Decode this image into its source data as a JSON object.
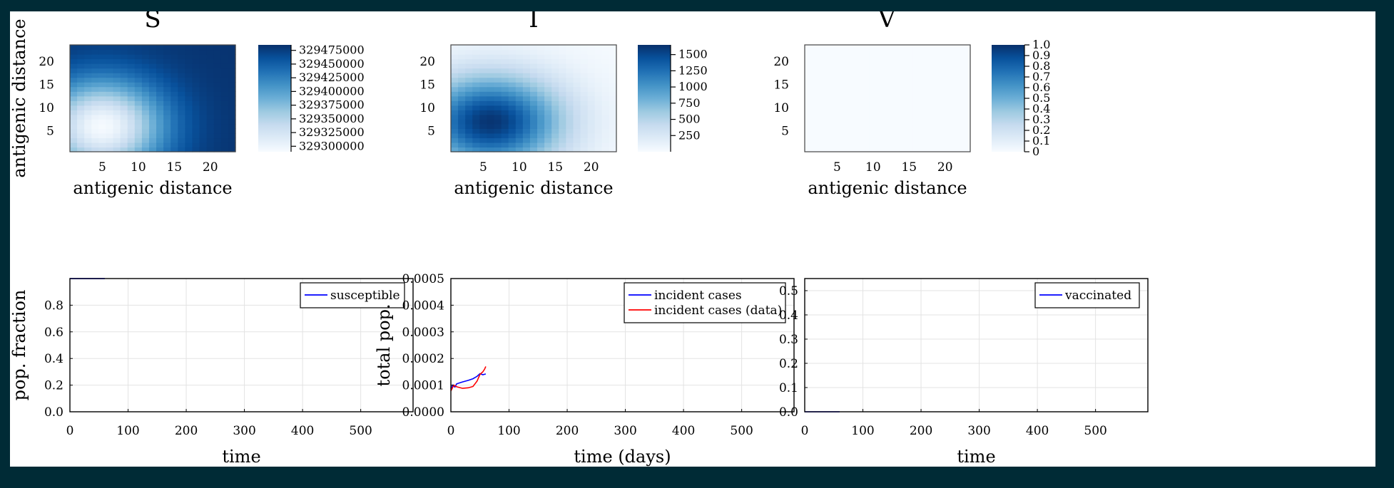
{
  "chart_data": [
    {
      "type": "heatmap",
      "title": "S",
      "xlabel": "antigenic distance",
      "ylabel": "antigenic distance",
      "xticks": [
        5,
        10,
        15,
        20
      ],
      "yticks": [
        5,
        10,
        15,
        20
      ],
      "grid_size": [
        23,
        23
      ],
      "colorbar_range": [
        329290000,
        329485000
      ],
      "colorbar_ticks": [
        "329475000",
        "329450000",
        "329425000",
        "329400000",
        "329375000",
        "329350000",
        "329325000",
        "329300000"
      ],
      "colorbar_tick_values": [
        329475000,
        329450000,
        329425000,
        329400000,
        329375000,
        329350000,
        329325000,
        329300000
      ],
      "field": {
        "kind": "inverse",
        "center_x": 5,
        "center_y": 6,
        "sigma_x": 6,
        "sigma_y": 7,
        "min": 329292000,
        "max": 329482000
      },
      "colormap": "Blues"
    },
    {
      "type": "heatmap",
      "title": "I",
      "xlabel": "antigenic distance",
      "ylabel": "",
      "xticks": [
        5,
        10,
        15,
        20
      ],
      "yticks": [
        5,
        10,
        15,
        20
      ],
      "grid_size": [
        23,
        23
      ],
      "colorbar_range": [
        0,
        1650
      ],
      "colorbar_ticks": [
        "1500",
        "1250",
        "1000",
        "750",
        "500",
        "250"
      ],
      "colorbar_tick_values": [
        1500,
        1250,
        1000,
        750,
        500,
        250
      ],
      "field": {
        "kind": "gaussian",
        "center_x": 6,
        "center_y": 7,
        "sigma_x": 7,
        "sigma_y": 7,
        "min": 20,
        "max": 1620
      },
      "colormap": "Blues"
    },
    {
      "type": "heatmap",
      "title": "V",
      "xlabel": "antigenic distance",
      "ylabel": "",
      "xticks": [
        5,
        10,
        15,
        20
      ],
      "yticks": [
        5,
        10,
        15,
        20
      ],
      "grid_size": [
        23,
        23
      ],
      "colorbar_range": [
        0,
        1
      ],
      "colorbar_ticks": [
        "1.0",
        "0.9",
        "0.8",
        "0.7",
        "0.6",
        "0.5",
        "0.4",
        "0.3",
        "0.2",
        "0.1",
        "0"
      ],
      "colorbar_tick_values": [
        1.0,
        0.9,
        0.8,
        0.7,
        0.6,
        0.5,
        0.4,
        0.3,
        0.2,
        0.1,
        0
      ],
      "field": {
        "kind": "constant",
        "value": 0
      },
      "colormap": "Blues"
    },
    {
      "type": "line",
      "xlabel": "time",
      "ylabel": "pop. fraction",
      "xlim": [
        0,
        590
      ],
      "ylim": [
        0,
        1
      ],
      "xticks": [
        "0",
        "100",
        "200",
        "300",
        "400",
        "500"
      ],
      "xtick_values": [
        0,
        100,
        200,
        300,
        400,
        500
      ],
      "yticks": [
        "0.0",
        "0.2",
        "0.4",
        "0.6",
        "0.8"
      ],
      "ytick_values": [
        0,
        0.2,
        0.4,
        0.6,
        0.8
      ],
      "grid": true,
      "legend": "top-right",
      "series": [
        {
          "name": "susceptible",
          "color": "#0000ff",
          "x": [
            0,
            10,
            20,
            30,
            40,
            50,
            60
          ],
          "y": [
            0.9999,
            0.9999,
            0.9998,
            0.9998,
            0.9997,
            0.9997,
            0.9996
          ]
        }
      ]
    },
    {
      "type": "line",
      "xlabel": "time (days)",
      "ylabel": "total pop.",
      "xlim": [
        0,
        590
      ],
      "ylim": [
        0,
        0.0005
      ],
      "xticks": [
        "0",
        "100",
        "200",
        "300",
        "400",
        "500"
      ],
      "xtick_values": [
        0,
        100,
        200,
        300,
        400,
        500
      ],
      "yticks": [
        "0.0000",
        "0.0001",
        "0.0002",
        "0.0003",
        "0.0004",
        "0.0005"
      ],
      "ytick_values": [
        0,
        0.0001,
        0.0002,
        0.0003,
        0.0004,
        0.0005
      ],
      "grid": true,
      "legend": "top-right",
      "series": [
        {
          "name": "incident cases",
          "color": "#0000ff",
          "x": [
            0,
            3,
            7,
            10,
            20,
            30,
            38,
            45,
            50,
            55,
            60
          ],
          "y": [
            8.5e-05,
            0.0001,
            9.3e-05,
            0.000105,
            0.000112,
            0.000118,
            0.000124,
            0.000133,
            0.000143,
            0.000139,
            0.000142
          ]
        },
        {
          "name": "incident cases (data)",
          "color": "#ff0000",
          "x": [
            0,
            5,
            10,
            20,
            30,
            38,
            45,
            50,
            55,
            58,
            60
          ],
          "y": [
            7.8e-05,
            0.0001,
            9.4e-05,
            8.8e-05,
            9e-05,
            9.5e-05,
            0.000115,
            0.00014,
            0.00015,
            0.00016,
            0.00017
          ]
        }
      ]
    },
    {
      "type": "line",
      "xlabel": "time",
      "ylabel": "",
      "xlim": [
        0,
        590
      ],
      "ylim": [
        0,
        0.55
      ],
      "xticks": [
        "0",
        "100",
        "200",
        "300",
        "400",
        "500"
      ],
      "xtick_values": [
        0,
        100,
        200,
        300,
        400,
        500
      ],
      "yticks": [
        "0.0",
        "0.1",
        "0.2",
        "0.3",
        "0.4",
        "0.5"
      ],
      "ytick_values": [
        0,
        0.1,
        0.2,
        0.3,
        0.4,
        0.5
      ],
      "grid": true,
      "legend": "top-right",
      "series": [
        {
          "name": "vaccinated",
          "color": "#0000ff",
          "x": [
            0,
            20,
            40,
            60
          ],
          "y": [
            0,
            0,
            0,
            0
          ]
        }
      ]
    }
  ]
}
